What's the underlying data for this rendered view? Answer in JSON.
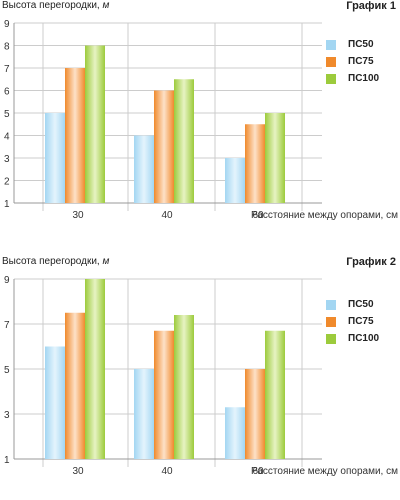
{
  "colors": {
    "PC50_light": "#e4f4fd",
    "PC50_dark": "#a3d6f2",
    "PC75_light": "#fde1c8",
    "PC75_dark": "#f08a2c",
    "PC100_light": "#e7f3c3",
    "PC100_dark": "#9ccb3c",
    "grid": "#cccccc",
    "axis": "#999999"
  },
  "legend": [
    "ПС50",
    "ПС75",
    "ПС100"
  ],
  "charts": [
    {
      "title": "График 1",
      "ylabel_main": "Высота перегородки,",
      "ylabel_unit": "м",
      "xlabel": "Расстояние между опорами, см",
      "ytick_labels": [
        "1",
        "2",
        "3",
        "4",
        "5",
        "6",
        "7",
        "8",
        "9"
      ],
      "xtick_labels": [
        "30",
        "40",
        "60"
      ]
    },
    {
      "title": "График 2",
      "ylabel_main": "Высота перегородки,",
      "ylabel_unit": "м",
      "xlabel": "Расстояние между опорами, см",
      "ytick_labels": [
        "1",
        "3",
        "5",
        "7",
        "9"
      ],
      "xtick_labels": [
        "30",
        "40",
        "60"
      ]
    }
  ],
  "chart_data": [
    {
      "type": "bar",
      "title": "График 1",
      "ylabel": "Высота перегородки, м",
      "xlabel": "Расстояние между опорами, см",
      "categories": [
        "30",
        "40",
        "60"
      ],
      "series": [
        {
          "name": "ПС50",
          "values": [
            5,
            4,
            3
          ]
        },
        {
          "name": "ПС75",
          "values": [
            7,
            6,
            4.5
          ]
        },
        {
          "name": "ПС100",
          "values": [
            8,
            6.5,
            5
          ]
        }
      ],
      "ylim": [
        1,
        9
      ],
      "yticks": [
        1,
        2,
        3,
        4,
        5,
        6,
        7,
        8,
        9
      ],
      "grid": true,
      "legend": "right"
    },
    {
      "type": "bar",
      "title": "График 2",
      "ylabel": "Высота перегородки, м",
      "xlabel": "Расстояние между опорами, см",
      "categories": [
        "30",
        "40",
        "60"
      ],
      "series": [
        {
          "name": "ПС50",
          "values": [
            6,
            5,
            3.3
          ]
        },
        {
          "name": "ПС75",
          "values": [
            7.5,
            6.7,
            5
          ]
        },
        {
          "name": "ПС100",
          "values": [
            9,
            7.4,
            6.7
          ]
        }
      ],
      "ylim": [
        1,
        9
      ],
      "yticks": [
        1,
        3,
        5,
        7,
        9
      ],
      "grid": true,
      "legend": "right"
    }
  ]
}
